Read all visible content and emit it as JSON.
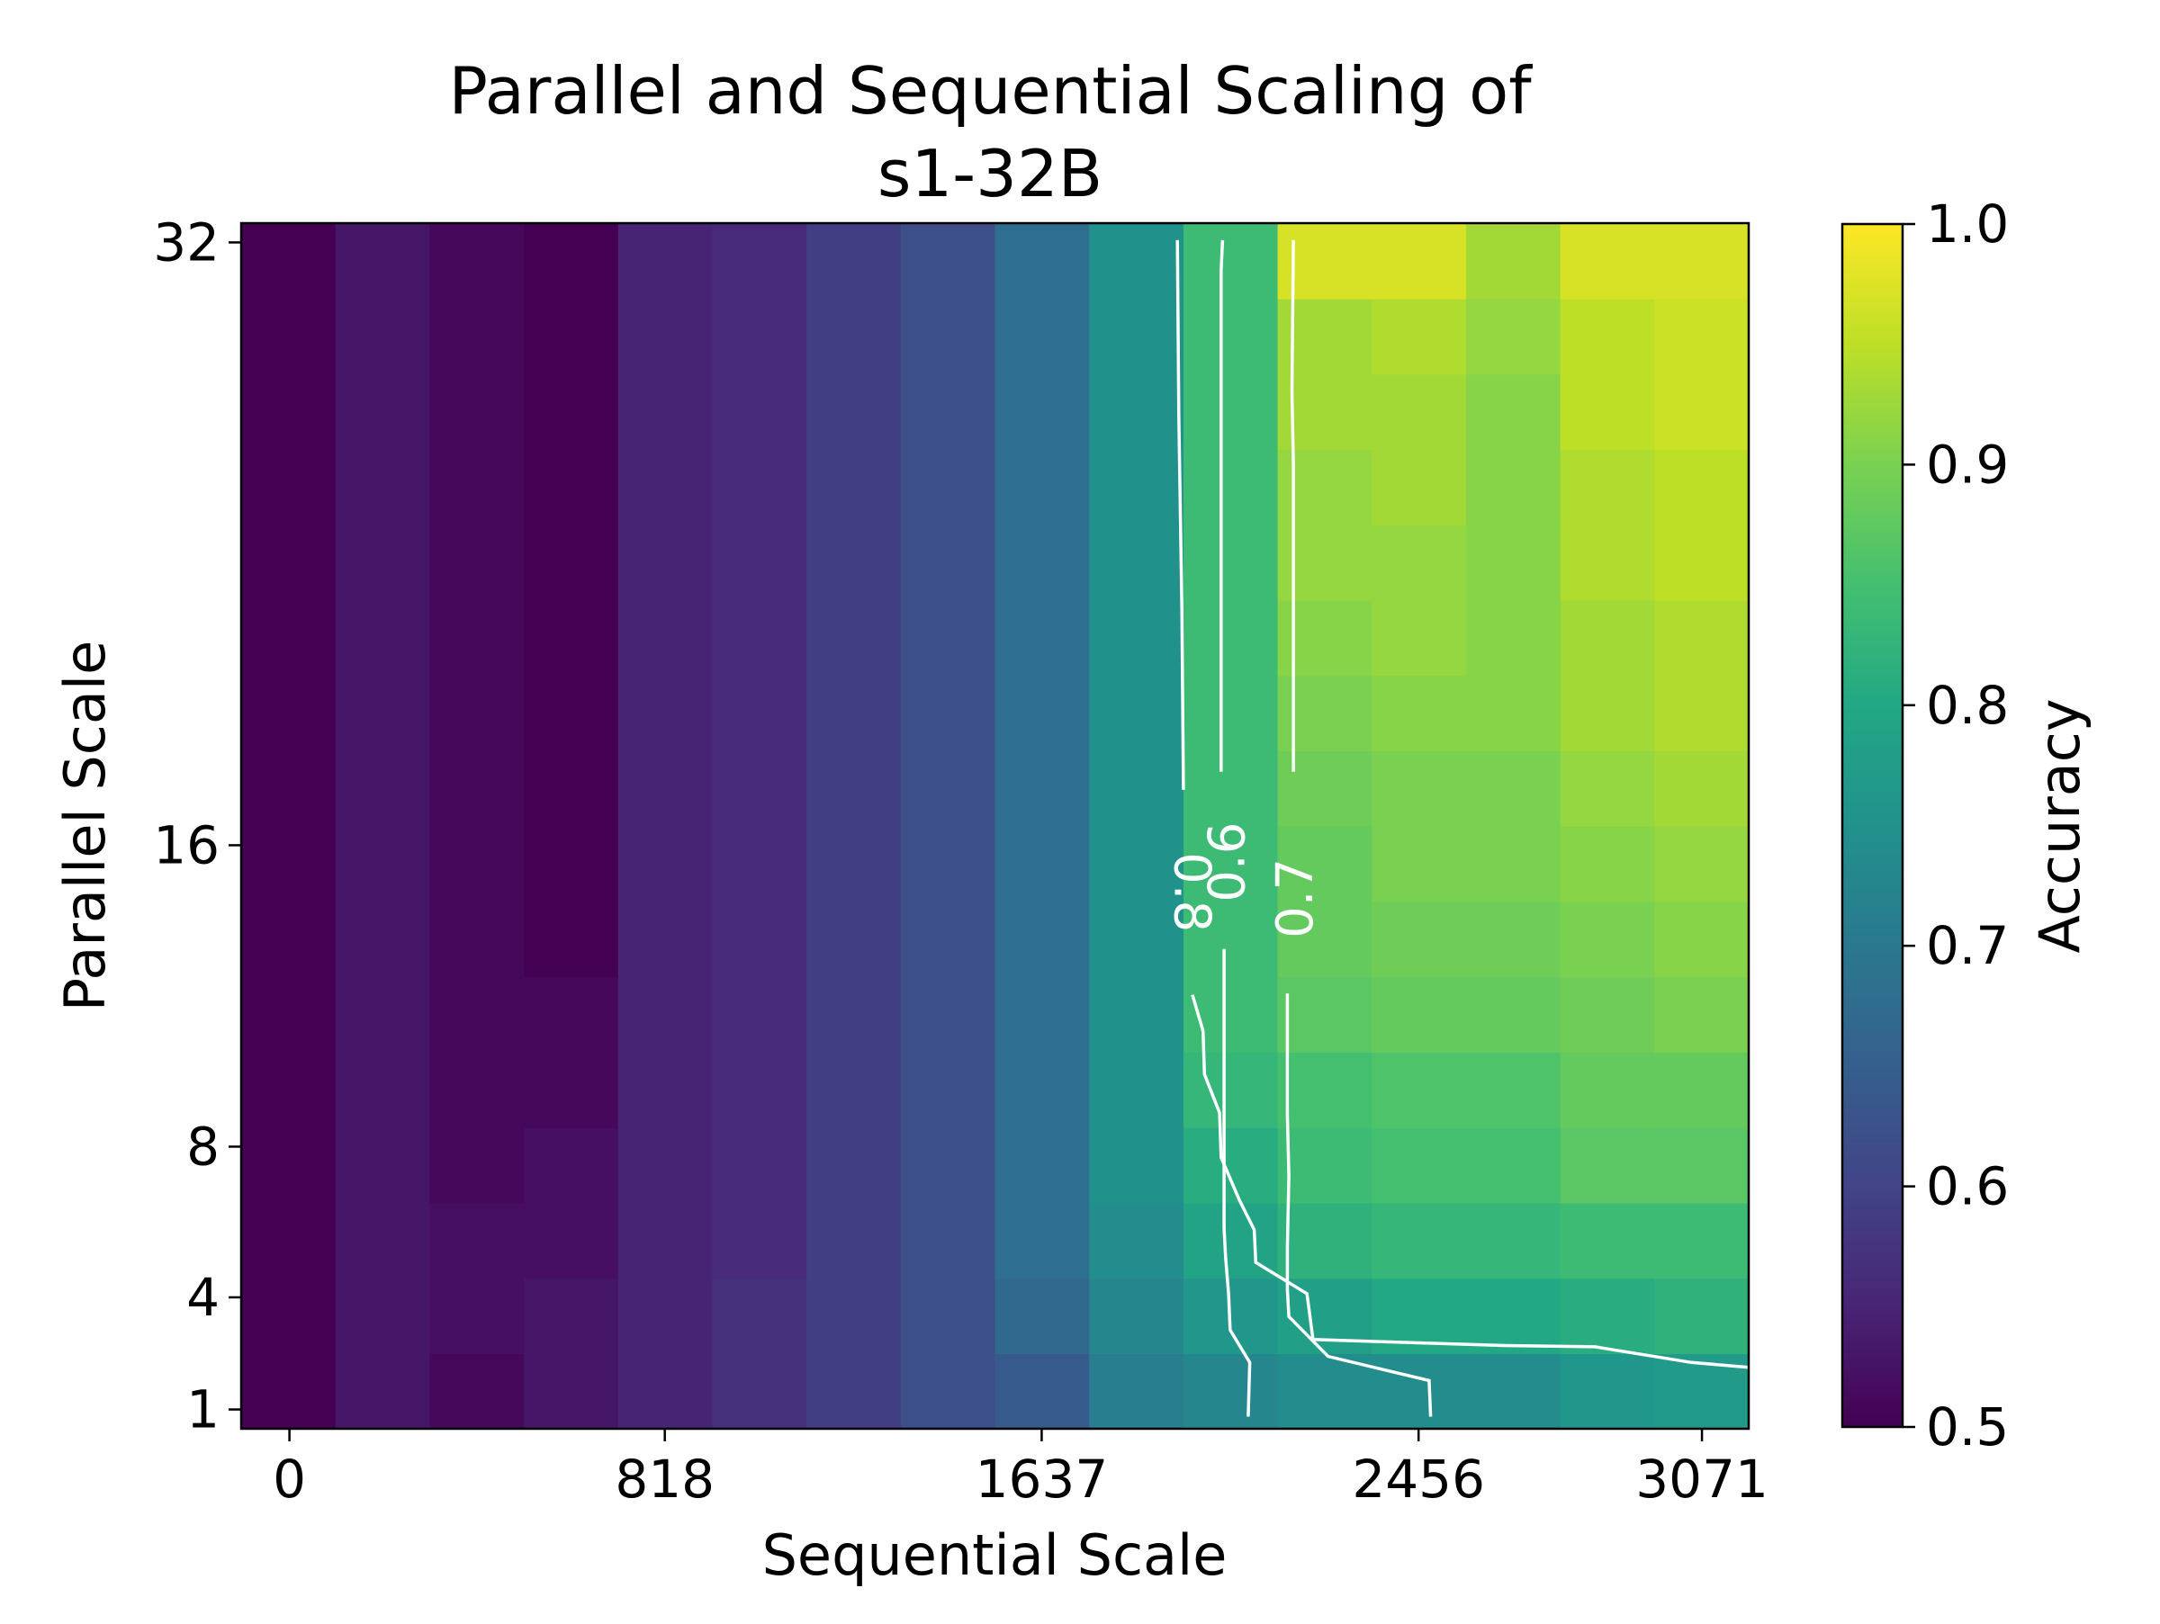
{
  "chart_data": {
    "type": "heatmap",
    "title_lines": [
      "Parallel and Sequential Scaling of",
      "s1-32B"
    ],
    "xlabel": "Sequential Scale",
    "ylabel": "Parallel Scale",
    "x_ticks": [
      "0",
      "818",
      "1637",
      "2456",
      "3071"
    ],
    "y_ticks": [
      "1",
      "4",
      "8",
      "16",
      "32"
    ],
    "colorbar": {
      "label": "Accuracy",
      "range": [
        0.5,
        1.0
      ],
      "ticks": [
        "0.5",
        "0.6",
        "0.7",
        "0.8",
        "0.9",
        "1.0"
      ],
      "colormap": "viridis"
    },
    "columns": 16,
    "rows": 16,
    "cell_values": [
      [
        0.5,
        0.53,
        0.51,
        0.53,
        0.55,
        0.57,
        0.59,
        0.62,
        0.64,
        0.71,
        0.73,
        0.74,
        0.74,
        0.74,
        0.76,
        0.77
      ],
      [
        0.5,
        0.53,
        0.52,
        0.53,
        0.55,
        0.57,
        0.59,
        0.62,
        0.67,
        0.73,
        0.76,
        0.78,
        0.8,
        0.8,
        0.81,
        0.82
      ],
      [
        0.5,
        0.53,
        0.52,
        0.52,
        0.55,
        0.56,
        0.59,
        0.62,
        0.68,
        0.74,
        0.79,
        0.82,
        0.83,
        0.83,
        0.84,
        0.84
      ],
      [
        0.5,
        0.53,
        0.51,
        0.52,
        0.55,
        0.56,
        0.59,
        0.62,
        0.68,
        0.75,
        0.81,
        0.84,
        0.85,
        0.85,
        0.87,
        0.87
      ],
      [
        0.5,
        0.53,
        0.51,
        0.51,
        0.55,
        0.56,
        0.59,
        0.62,
        0.68,
        0.75,
        0.83,
        0.85,
        0.86,
        0.86,
        0.88,
        0.88
      ],
      [
        0.5,
        0.53,
        0.51,
        0.51,
        0.55,
        0.56,
        0.59,
        0.62,
        0.68,
        0.75,
        0.84,
        0.87,
        0.88,
        0.88,
        0.89,
        0.9
      ],
      [
        0.5,
        0.53,
        0.51,
        0.5,
        0.55,
        0.56,
        0.59,
        0.62,
        0.68,
        0.75,
        0.84,
        0.88,
        0.89,
        0.89,
        0.9,
        0.91
      ],
      [
        0.5,
        0.53,
        0.51,
        0.5,
        0.55,
        0.56,
        0.59,
        0.62,
        0.68,
        0.75,
        0.84,
        0.88,
        0.9,
        0.9,
        0.91,
        0.92
      ],
      [
        0.5,
        0.53,
        0.51,
        0.5,
        0.55,
        0.56,
        0.59,
        0.62,
        0.68,
        0.75,
        0.84,
        0.89,
        0.9,
        0.9,
        0.92,
        0.93
      ],
      [
        0.5,
        0.53,
        0.51,
        0.5,
        0.55,
        0.56,
        0.59,
        0.62,
        0.68,
        0.75,
        0.84,
        0.9,
        0.91,
        0.91,
        0.93,
        0.94
      ],
      [
        0.5,
        0.53,
        0.51,
        0.5,
        0.55,
        0.56,
        0.59,
        0.62,
        0.68,
        0.75,
        0.84,
        0.91,
        0.92,
        0.91,
        0.93,
        0.94
      ],
      [
        0.5,
        0.53,
        0.51,
        0.5,
        0.55,
        0.56,
        0.59,
        0.62,
        0.68,
        0.75,
        0.84,
        0.92,
        0.92,
        0.91,
        0.94,
        0.95
      ],
      [
        0.5,
        0.53,
        0.51,
        0.5,
        0.55,
        0.56,
        0.59,
        0.62,
        0.68,
        0.75,
        0.84,
        0.92,
        0.93,
        0.91,
        0.94,
        0.95
      ],
      [
        0.5,
        0.53,
        0.51,
        0.5,
        0.55,
        0.56,
        0.59,
        0.62,
        0.68,
        0.75,
        0.84,
        0.93,
        0.93,
        0.91,
        0.95,
        0.96
      ],
      [
        0.5,
        0.53,
        0.51,
        0.5,
        0.55,
        0.56,
        0.59,
        0.62,
        0.68,
        0.75,
        0.84,
        0.93,
        0.94,
        0.92,
        0.95,
        0.96
      ],
      [
        0.5,
        0.53,
        0.51,
        0.5,
        0.55,
        0.56,
        0.59,
        0.62,
        0.68,
        0.75,
        0.84,
        0.97,
        0.97,
        0.93,
        0.97,
        0.97
      ]
    ],
    "contours": [
      {
        "level": "0.6",
        "points": [
          [
            0.668,
            0.01
          ],
          [
            0.669,
            0.055
          ],
          [
            0.656,
            0.082
          ],
          [
            0.655,
            0.112
          ],
          [
            0.653,
            0.142
          ],
          [
            0.652,
            0.166
          ],
          [
            0.652,
            0.398
          ],
          [
            0.65,
            0.545
          ],
          [
            0.65,
            0.79
          ],
          [
            0.65,
            0.96
          ],
          [
            0.651,
            0.986
          ]
        ]
      },
      {
        "level": "0.7",
        "points": [
          [
            0.789,
            0.01
          ],
          [
            0.788,
            0.04
          ],
          [
            0.721,
            0.06
          ],
          [
            0.695,
            0.093
          ],
          [
            0.694,
            0.116
          ],
          [
            0.694,
            0.15
          ],
          [
            0.695,
            0.21
          ],
          [
            0.694,
            0.26
          ],
          [
            0.694,
            0.361
          ],
          [
            0.697,
            0.45
          ],
          [
            0.698,
            0.545
          ],
          [
            0.698,
            0.66
          ],
          [
            0.698,
            0.8
          ],
          [
            0.697,
            0.86
          ],
          [
            0.698,
            0.986
          ]
        ]
      },
      {
        "level": "0.8",
        "points": [
          [
            1.0,
            0.051
          ],
          [
            0.962,
            0.055
          ],
          [
            0.898,
            0.068
          ],
          [
            0.838,
            0.069
          ],
          [
            0.711,
            0.074
          ],
          [
            0.707,
            0.112
          ],
          [
            0.673,
            0.138
          ],
          [
            0.672,
            0.165
          ],
          [
            0.662,
            0.19
          ],
          [
            0.65,
            0.225
          ],
          [
            0.649,
            0.262
          ],
          [
            0.639,
            0.294
          ],
          [
            0.638,
            0.33
          ],
          [
            0.631,
            0.36
          ],
          [
            0.628,
            0.405
          ],
          [
            0.627,
            0.45
          ],
          [
            0.625,
            0.53
          ],
          [
            0.624,
            0.68
          ],
          [
            0.622,
            0.84
          ],
          [
            0.621,
            0.986
          ]
        ]
      }
    ]
  }
}
